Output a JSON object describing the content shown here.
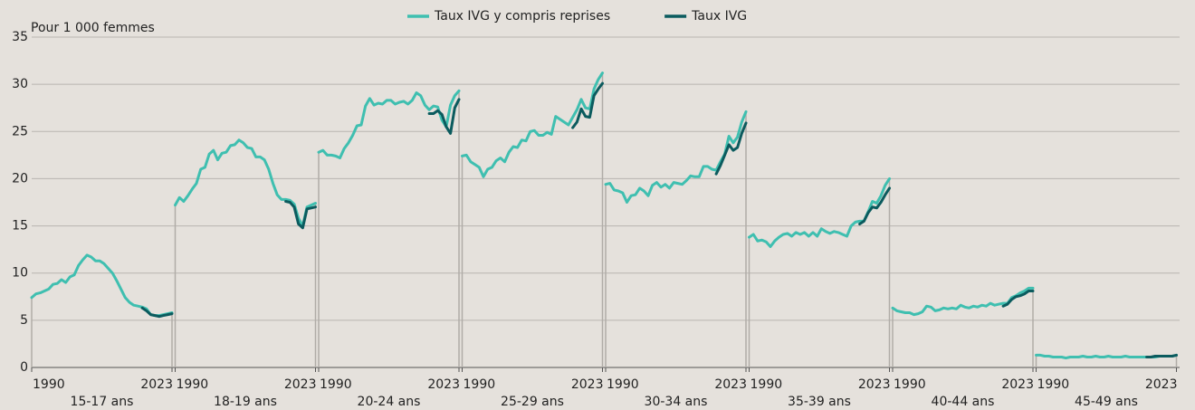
{
  "chart_data": {
    "type": "line",
    "ylabel": "Pour 1 000 femmes",
    "ylim": [
      0,
      35
    ],
    "yticks": [
      0,
      5,
      10,
      15,
      20,
      25,
      30,
      35
    ],
    "grid": true,
    "x": [
      1990,
      1991,
      1992,
      1993,
      1994,
      1995,
      1996,
      1997,
      1998,
      1999,
      2000,
      2001,
      2002,
      2003,
      2004,
      2005,
      2006,
      2007,
      2008,
      2009,
      2010,
      2011,
      2012,
      2013,
      2014,
      2015,
      2016,
      2017,
      2018,
      2019,
      2020,
      2021,
      2022,
      2023
    ],
    "panels": [
      "15-17 ans",
      "18-19 ans",
      "20-24 ans",
      "25-29 ans",
      "30-34 ans",
      "35-39 ans",
      "40-44 ans",
      "45-49 ans"
    ],
    "series": [
      {
        "name": "Taux IVG y compris reprises",
        "color": "#3fbfb0",
        "values": [
          [
            7.4,
            7.8,
            7.9,
            8.1,
            8.3,
            8.8,
            8.9,
            9.3,
            9.0,
            9.6,
            9.8,
            10.8,
            11.4,
            11.9,
            11.7,
            11.3,
            11.3,
            11.0,
            10.5,
            10.0,
            9.2,
            8.3,
            7.4,
            6.9,
            6.6,
            6.5,
            6.4,
            6.2,
            5.6,
            5.5,
            5.5,
            5.6,
            5.7,
            5.8
          ],
          [
            17.2,
            18.0,
            17.6,
            18.2,
            18.9,
            19.5,
            21.0,
            21.2,
            22.6,
            23.0,
            22.0,
            22.7,
            22.8,
            23.5,
            23.6,
            24.1,
            23.8,
            23.3,
            23.2,
            22.3,
            22.3,
            22.0,
            21.0,
            19.5,
            18.3,
            17.8,
            17.8,
            17.7,
            17.3,
            15.8,
            15.0,
            17.0,
            17.2,
            17.4
          ],
          [
            22.8,
            23.0,
            22.5,
            22.5,
            22.4,
            22.2,
            23.2,
            23.8,
            24.6,
            25.6,
            25.7,
            27.7,
            28.5,
            27.8,
            28.0,
            27.9,
            28.3,
            28.3,
            27.9,
            28.1,
            28.2,
            27.9,
            28.3,
            29.1,
            28.8,
            27.8,
            27.3,
            27.7,
            27.6,
            26.2,
            25.5,
            27.8,
            28.8,
            29.3
          ],
          [
            22.4,
            22.5,
            21.8,
            21.5,
            21.2,
            20.2,
            21.0,
            21.2,
            21.9,
            22.2,
            21.8,
            22.8,
            23.4,
            23.3,
            24.1,
            24.0,
            25.0,
            25.1,
            24.6,
            24.6,
            24.9,
            24.7,
            26.6,
            26.3,
            26.0,
            25.7,
            26.5,
            27.3,
            28.4,
            27.5,
            27.4,
            29.5,
            30.5,
            31.2
          ],
          [
            19.4,
            19.5,
            18.8,
            18.7,
            18.5,
            17.5,
            18.2,
            18.3,
            19.0,
            18.7,
            18.2,
            19.3,
            19.6,
            19.1,
            19.4,
            19.0,
            19.6,
            19.5,
            19.4,
            19.8,
            20.3,
            20.2,
            20.2,
            21.3,
            21.3,
            21.0,
            20.9,
            21.8,
            22.6,
            24.5,
            23.8,
            24.4,
            26.0,
            27.1
          ],
          [
            13.8,
            14.1,
            13.4,
            13.5,
            13.3,
            12.8,
            13.4,
            13.8,
            14.1,
            14.2,
            13.9,
            14.3,
            14.1,
            14.3,
            13.9,
            14.3,
            13.9,
            14.7,
            14.4,
            14.2,
            14.4,
            14.3,
            14.1,
            13.9,
            15.0,
            15.4,
            15.5,
            15.5,
            16.5,
            17.6,
            17.4,
            18.2,
            19.3,
            20.0
          ],
          [
            6.3,
            6.0,
            5.9,
            5.8,
            5.8,
            5.6,
            5.7,
            5.9,
            6.5,
            6.4,
            6.0,
            6.1,
            6.3,
            6.2,
            6.3,
            6.2,
            6.6,
            6.4,
            6.3,
            6.5,
            6.4,
            6.6,
            6.5,
            6.8,
            6.6,
            6.7,
            6.8,
            6.8,
            7.4,
            7.6,
            7.9,
            8.1,
            8.4,
            8.4
          ],
          [
            1.3,
            1.3,
            1.2,
            1.2,
            1.1,
            1.1,
            1.1,
            1.0,
            1.1,
            1.1,
            1.1,
            1.2,
            1.1,
            1.1,
            1.2,
            1.1,
            1.1,
            1.2,
            1.1,
            1.1,
            1.1,
            1.2,
            1.1,
            1.1,
            1.1,
            1.1,
            1.1,
            1.1,
            1.1,
            1.2,
            1.2,
            1.2,
            1.2,
            1.3
          ]
        ]
      },
      {
        "name": "Taux IVG",
        "color": "#0b5b5e",
        "values": [
          [
            null,
            null,
            null,
            null,
            null,
            null,
            null,
            null,
            null,
            null,
            null,
            null,
            null,
            null,
            null,
            null,
            null,
            null,
            null,
            null,
            null,
            null,
            null,
            null,
            null,
            null,
            6.3,
            6.0,
            5.6,
            5.5,
            5.4,
            5.5,
            5.6,
            5.7
          ],
          [
            null,
            null,
            null,
            null,
            null,
            null,
            null,
            null,
            null,
            null,
            null,
            null,
            null,
            null,
            null,
            null,
            null,
            null,
            null,
            null,
            null,
            null,
            null,
            null,
            null,
            null,
            17.6,
            17.5,
            17.0,
            15.2,
            14.8,
            16.8,
            16.9,
            17.0
          ],
          [
            null,
            null,
            null,
            null,
            null,
            null,
            null,
            null,
            null,
            null,
            null,
            null,
            null,
            null,
            null,
            null,
            null,
            null,
            null,
            null,
            null,
            null,
            null,
            null,
            null,
            null,
            26.9,
            26.9,
            27.2,
            26.8,
            25.5,
            24.8,
            27.5,
            28.4
          ],
          [
            null,
            null,
            null,
            null,
            null,
            null,
            null,
            null,
            null,
            null,
            null,
            null,
            null,
            null,
            null,
            null,
            null,
            null,
            null,
            null,
            null,
            null,
            null,
            null,
            null,
            null,
            25.4,
            26.0,
            27.4,
            26.6,
            26.5,
            28.8,
            29.5,
            30.1
          ],
          [
            null,
            null,
            null,
            null,
            null,
            null,
            null,
            null,
            null,
            null,
            null,
            null,
            null,
            null,
            null,
            null,
            null,
            null,
            null,
            null,
            null,
            null,
            null,
            null,
            null,
            null,
            20.5,
            21.4,
            22.5,
            23.6,
            23.0,
            23.3,
            24.8,
            25.9
          ],
          [
            null,
            null,
            null,
            null,
            null,
            null,
            null,
            null,
            null,
            null,
            null,
            null,
            null,
            null,
            null,
            null,
            null,
            null,
            null,
            null,
            null,
            null,
            null,
            null,
            null,
            null,
            15.2,
            15.5,
            16.4,
            17.0,
            16.9,
            17.5,
            18.3,
            19.0
          ],
          [
            null,
            null,
            null,
            null,
            null,
            null,
            null,
            null,
            null,
            null,
            null,
            null,
            null,
            null,
            null,
            null,
            null,
            null,
            null,
            null,
            null,
            null,
            null,
            null,
            null,
            null,
            6.5,
            6.7,
            7.2,
            7.5,
            7.6,
            7.8,
            8.1,
            8.1
          ],
          [
            null,
            null,
            null,
            null,
            null,
            null,
            null,
            null,
            null,
            null,
            null,
            null,
            null,
            null,
            null,
            null,
            null,
            null,
            null,
            null,
            null,
            null,
            null,
            null,
            null,
            null,
            1.1,
            1.1,
            1.2,
            1.2,
            1.2,
            1.2,
            1.2,
            1.3
          ]
        ]
      }
    ]
  }
}
